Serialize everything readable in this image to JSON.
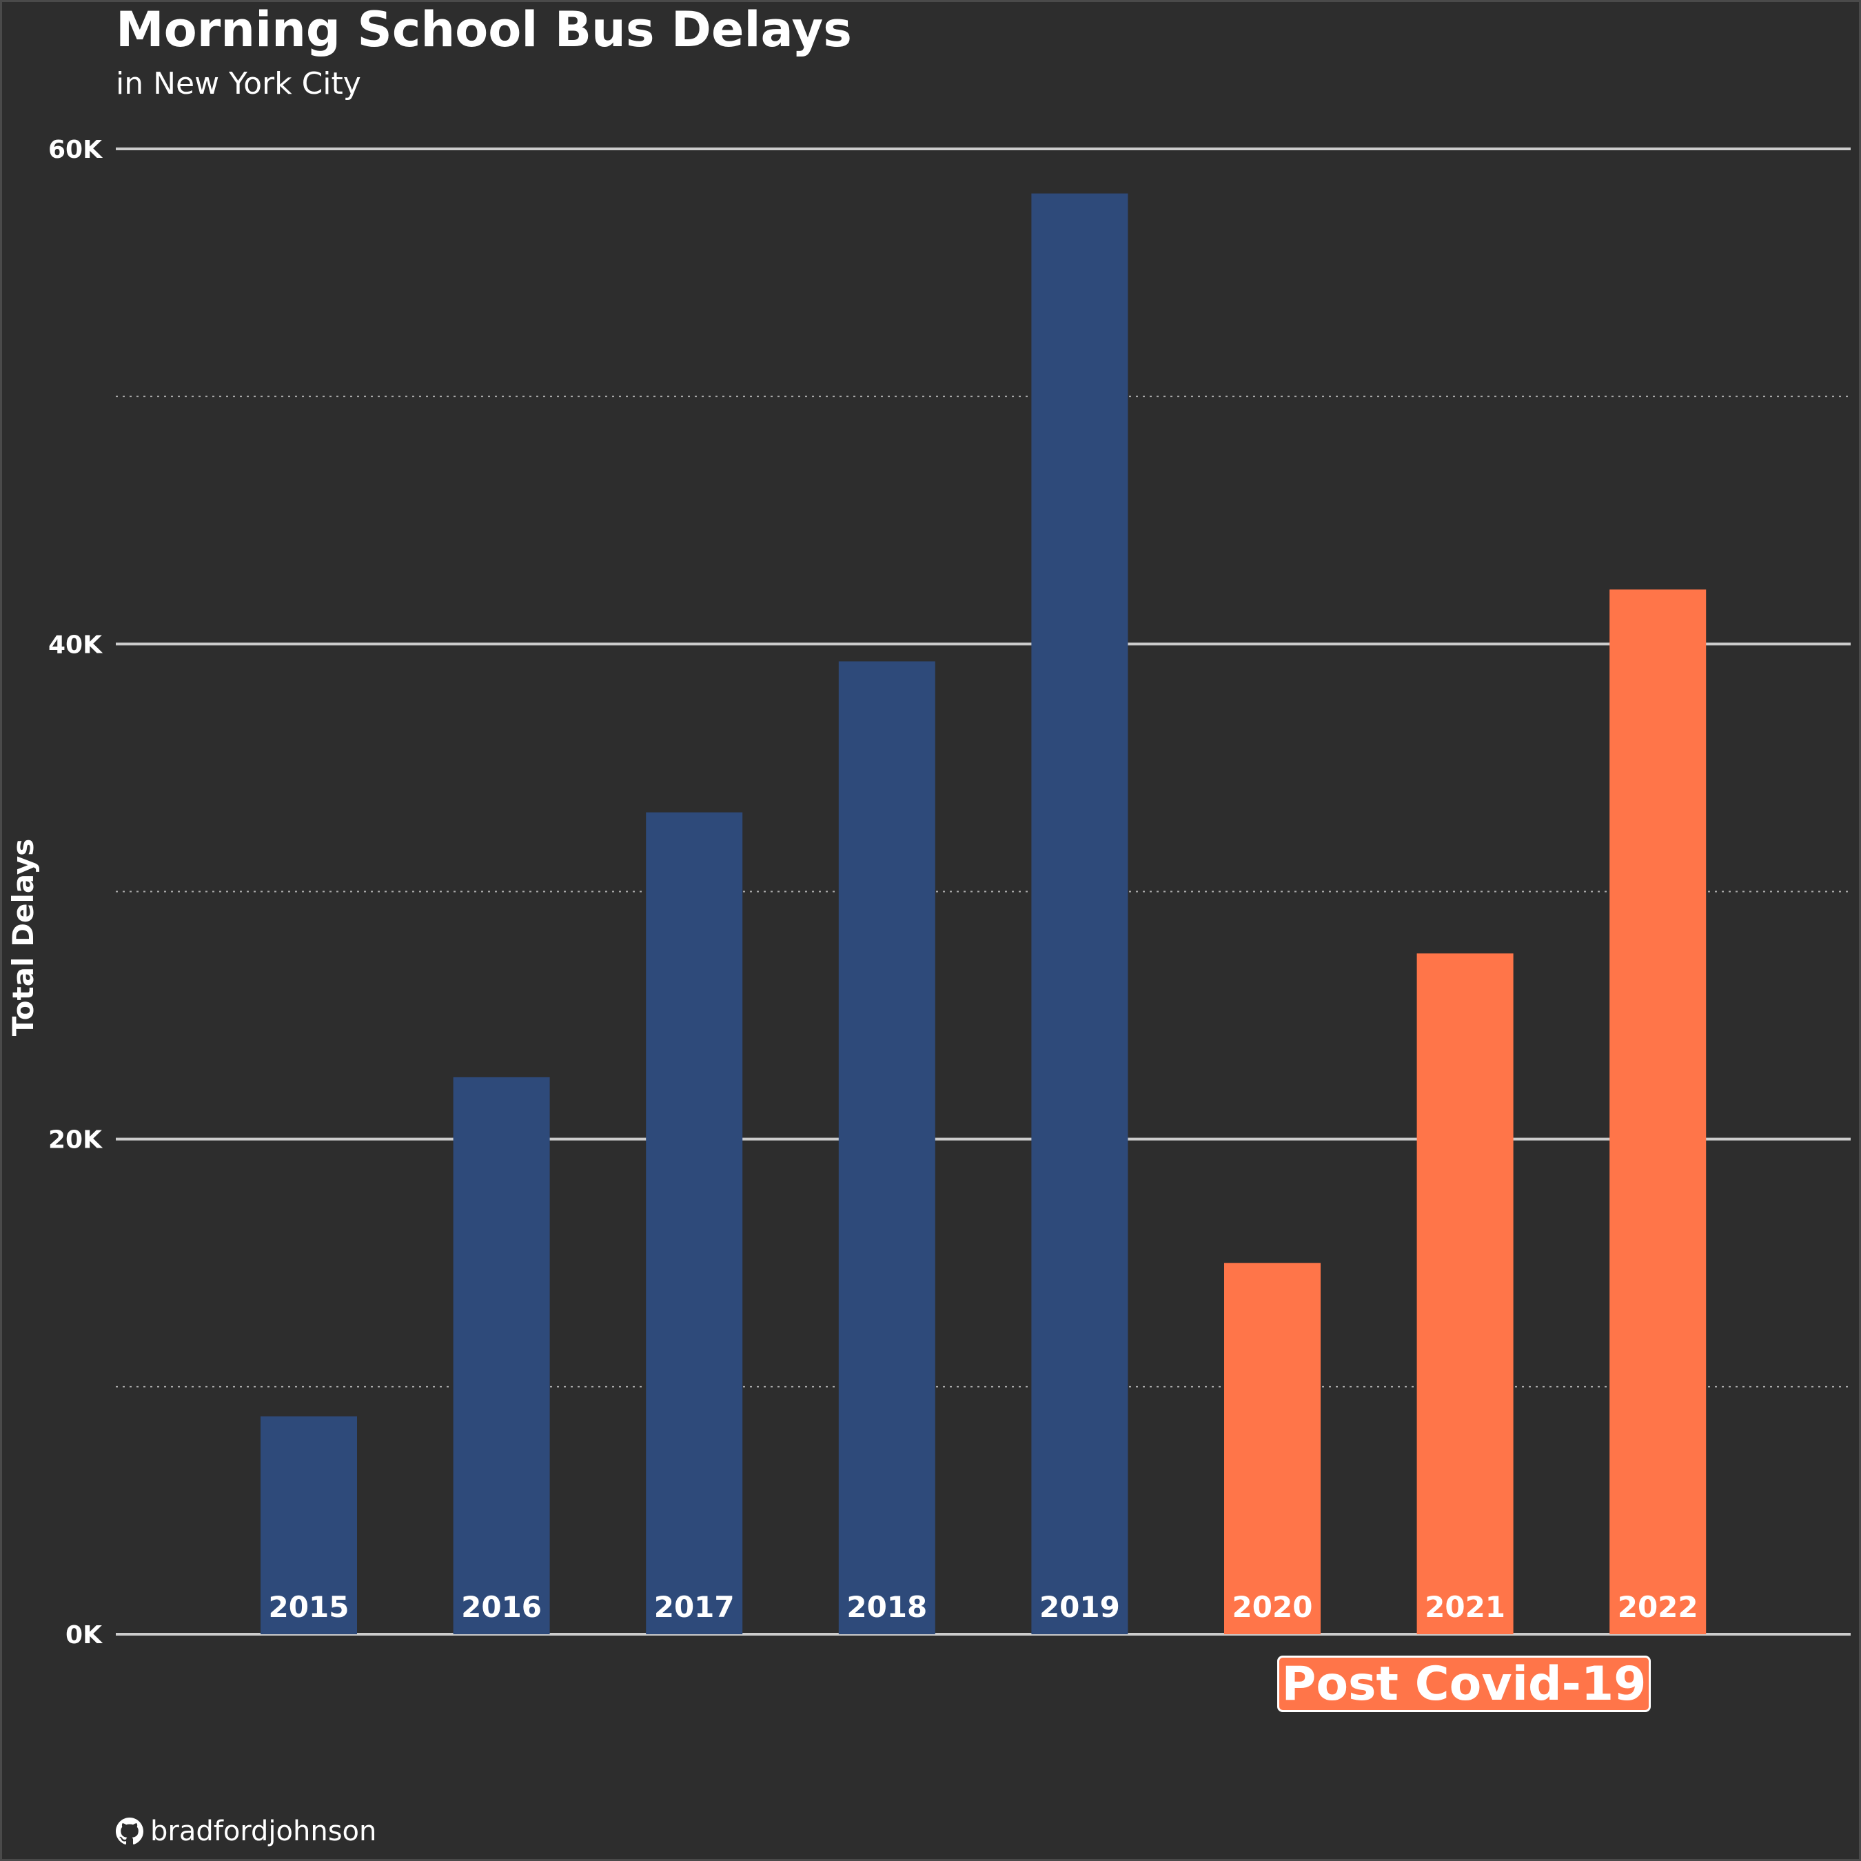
{
  "chart_data": {
    "type": "bar",
    "title": "Morning School Bus Delays",
    "subtitle": "in New York City",
    "ylabel": "Total Delays",
    "xlabel": "",
    "ylim": [
      0,
      60000
    ],
    "yticks": [
      0,
      20000,
      40000,
      60000
    ],
    "ytick_labels": [
      "0K",
      "20K",
      "40K",
      "60K"
    ],
    "minor_gridlines": [
      10000,
      30000,
      50000
    ],
    "grid": true,
    "categories": [
      "2015",
      "2016",
      "2017",
      "2018",
      "2019",
      "2020",
      "2021",
      "2022"
    ],
    "values": [
      8800,
      22500,
      33200,
      39300,
      58200,
      15000,
      27500,
      42200
    ],
    "colors": [
      "#2e4a7a",
      "#2e4a7a",
      "#2e4a7a",
      "#2e4a7a",
      "#2e4a7a",
      "#ff7549",
      "#ff7549",
      "#ff7549"
    ],
    "annotation": "Post Covid-19",
    "annotation_color": "#ff7549",
    "legend": "none"
  },
  "credit": {
    "icon": "github-icon",
    "text": "bradfordjohnson"
  },
  "theme": {
    "background": "#2d2d2d",
    "pre_covid_color": "#2e4a7a",
    "post_covid_color": "#ff7549",
    "text_color": "#ffffff",
    "gridline_color": "#cccccc"
  }
}
